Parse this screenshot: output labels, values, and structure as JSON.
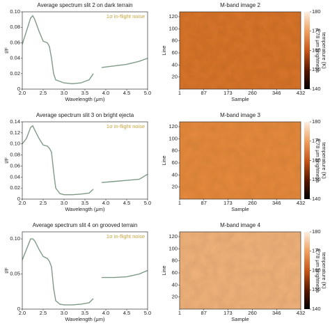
{
  "chart_data": [
    {
      "type": "line",
      "title": "Average spectrum slit 2 on dark terrain",
      "legend": "1σ in-flight noise",
      "x_label": "Wavelength (μm)",
      "y_label": "I/F",
      "x": [
        2.0,
        2.1,
        2.2,
        2.25,
        2.3,
        2.4,
        2.5,
        2.6,
        2.65,
        2.7,
        2.75,
        2.8,
        2.9,
        3.0,
        3.2,
        3.4,
        3.6,
        3.7,
        3.8,
        3.9,
        4.2,
        4.5,
        4.8,
        5.0
      ],
      "series": [
        {
          "color": "#7f9a86",
          "values": [
            0.058,
            0.075,
            0.092,
            0.095,
            0.09,
            0.075,
            0.062,
            0.06,
            0.055,
            0.04,
            0.02,
            0.012,
            0.01,
            0.008,
            0.007,
            0.008,
            0.012,
            0.02,
            null,
            0.028,
            0.03,
            0.032,
            0.036,
            0.04
          ]
        }
      ],
      "xlim": [
        2.0,
        5.0
      ],
      "xticks": [
        {
          "value": 2.0,
          "label": "2.0"
        },
        2.5,
        {
          "value": 3.0,
          "label": "3.0"
        },
        3.5,
        {
          "value": 4.0,
          "label": "4.0"
        },
        4.5,
        {
          "value": 5.0,
          "label": "5.0"
        }
      ],
      "ylim": [
        0,
        0.1
      ],
      "yticks": [
        0,
        0.02,
        0.04,
        0.06,
        0.08,
        {
          "value": 0.1,
          "label": "0.10"
        }
      ],
      "legend_color": "#c8a23a"
    },
    {
      "type": "image",
      "title": "M-band image 2",
      "x_label": "Sample",
      "y_label": "Line",
      "color": "#d8742a",
      "xlim": [
        1,
        432
      ],
      "xticks": [
        1,
        87,
        173,
        260,
        346,
        432
      ],
      "ylim": [
        0,
        128
      ],
      "yticks": [
        20,
        40,
        60,
        80,
        100,
        120
      ],
      "clim": [
        140,
        180
      ],
      "cticks": [
        140,
        150,
        160,
        170,
        180
      ],
      "colorbar_label": [
        "4.78 μm brightness",
        "temperature (K)"
      ],
      "colormap": [
        "#000000",
        "#5a1800",
        "#c8561a",
        "#f0a060",
        "#fdeee0"
      ]
    },
    {
      "type": "line",
      "title": "Average spectrum slit 3 on bright ejecta",
      "legend": "1σ in-flight noise",
      "x_label": "Wavelength (μm)",
      "y_label": "I/F",
      "x": [
        2.0,
        2.1,
        2.2,
        2.25,
        2.3,
        2.4,
        2.5,
        2.6,
        2.65,
        2.7,
        2.75,
        2.8,
        2.9,
        3.0,
        3.2,
        3.4,
        3.6,
        3.7,
        3.8,
        3.9,
        4.2,
        4.5,
        4.8,
        5.0
      ],
      "series": [
        {
          "color": "#7f9a86",
          "values": [
            0.1,
            0.11,
            0.13,
            0.133,
            0.125,
            0.11,
            0.098,
            0.096,
            0.092,
            0.085,
            0.05,
            0.02,
            0.01,
            0.008,
            0.008,
            0.009,
            0.011,
            0.018,
            null,
            0.03,
            0.032,
            0.034,
            0.036,
            0.045
          ]
        }
      ],
      "xlim": [
        2.0,
        5.0
      ],
      "xticks": [
        {
          "value": 2.0,
          "label": "2.0"
        },
        2.5,
        {
          "value": 3.0,
          "label": "3.0"
        },
        3.5,
        {
          "value": 4.0,
          "label": "4.0"
        },
        4.5,
        {
          "value": 5.0,
          "label": "5.0"
        }
      ],
      "ylim": [
        0,
        0.14
      ],
      "yticks": [
        0,
        0.02,
        0.04,
        0.06,
        0.08,
        {
          "value": 0.1,
          "label": "0.10"
        },
        0.12,
        0.14
      ],
      "legend_color": "#c8a23a"
    },
    {
      "type": "image",
      "title": "M-band image 3",
      "x_label": "Sample",
      "y_label": "Line",
      "color": "#e68a3c",
      "xlim": [
        1,
        432
      ],
      "xticks": [
        1,
        87,
        173,
        260,
        346,
        432
      ],
      "ylim": [
        0,
        128
      ],
      "yticks": [
        20,
        40,
        60,
        80,
        100,
        120
      ],
      "clim": [
        140,
        180
      ],
      "cticks": [
        140,
        150,
        160,
        170,
        180
      ],
      "colorbar_label": [
        "4.78 μm brightness",
        "temperature (K)"
      ],
      "colormap": [
        "#000000",
        "#5a1800",
        "#c8561a",
        "#f0a060",
        "#fdeee0"
      ]
    },
    {
      "type": "line",
      "title": "Average spectrum slit 4 on grooved terrain",
      "legend": "1σ in-flight noise",
      "x_label": "Wavelength (μm)",
      "y_label": "I/F",
      "x": [
        2.0,
        2.1,
        2.2,
        2.25,
        2.3,
        2.4,
        2.5,
        2.6,
        2.65,
        2.7,
        2.75,
        2.8,
        2.9,
        3.0,
        3.2,
        3.4,
        3.6,
        3.7,
        3.8,
        3.9,
        4.2,
        4.5,
        4.8,
        5.0
      ],
      "series": [
        {
          "color": "#7f9a86",
          "values": [
            0.07,
            0.085,
            0.1,
            0.1,
            0.097,
            0.085,
            0.075,
            0.072,
            0.068,
            0.06,
            0.03,
            0.012,
            0.007,
            0.006,
            0.006,
            0.007,
            0.009,
            0.015,
            null,
            0.045,
            0.045,
            0.046,
            0.05,
            0.055
          ]
        }
      ],
      "xlim": [
        2.0,
        5.0
      ],
      "xticks": [
        {
          "value": 2.0,
          "label": "2.0"
        },
        2.5,
        {
          "value": 3.0,
          "label": "3.0"
        },
        3.5,
        {
          "value": 4.0,
          "label": "4.0"
        },
        4.5,
        {
          "value": 5.0,
          "label": "5.0"
        }
      ],
      "ylim": [
        0,
        0.11
      ],
      "yticks": [
        0,
        0.05,
        {
          "value": 0.1,
          "label": "0.10"
        }
      ],
      "legend_color": "#c8a23a"
    },
    {
      "type": "image",
      "title": "M-band image 4",
      "x_label": "Sample",
      "y_label": "Line",
      "color": "#f0b27a",
      "xlim": [
        1,
        432
      ],
      "xticks": [
        1,
        87,
        173,
        260,
        346,
        432
      ],
      "ylim": [
        0,
        128
      ],
      "yticks": [
        20,
        40,
        60,
        80,
        100,
        120
      ],
      "clim": [
        140,
        180
      ],
      "cticks": [
        140,
        150,
        160,
        170,
        180
      ],
      "colorbar_label": [
        "4.78 μm brightness",
        "temperature (K)"
      ],
      "colormap": [
        "#000000",
        "#5a1800",
        "#c8561a",
        "#f0a060",
        "#fdeee0"
      ]
    }
  ]
}
